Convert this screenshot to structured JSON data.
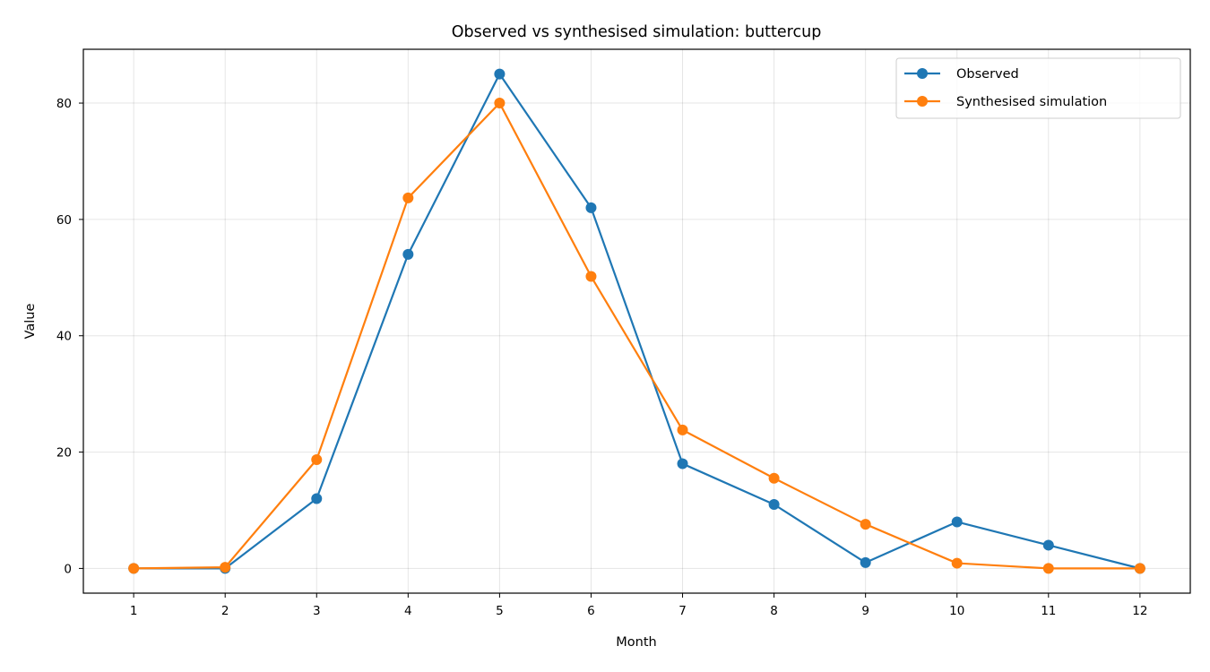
{
  "chart_data": {
    "type": "line",
    "title": "Observed vs synthesised simulation: buttercup",
    "xlabel": "Month",
    "ylabel": "Value",
    "x": [
      1,
      2,
      3,
      4,
      5,
      6,
      7,
      8,
      9,
      10,
      11,
      12
    ],
    "x_ticks": [
      "1",
      "2",
      "3",
      "4",
      "5",
      "6",
      "7",
      "8",
      "9",
      "10",
      "11",
      "12"
    ],
    "y_ticks": [
      "0",
      "20",
      "40",
      "60",
      "80"
    ],
    "xlim": [
      0.45,
      12.55
    ],
    "ylim": [
      -4.25,
      89.25
    ],
    "grid": true,
    "legend_position": "top-right",
    "series": [
      {
        "name": "Observed",
        "color": "#1f77b4",
        "values": [
          0,
          0,
          12,
          54,
          85,
          62,
          18,
          11,
          1,
          8,
          4,
          0
        ]
      },
      {
        "name": "Synthesised simulation",
        "color": "#ff7f0e",
        "values": [
          0,
          0.2,
          18.7,
          63.7,
          80,
          50.2,
          23.8,
          15.5,
          7.6,
          0.9,
          0,
          0
        ]
      }
    ]
  }
}
